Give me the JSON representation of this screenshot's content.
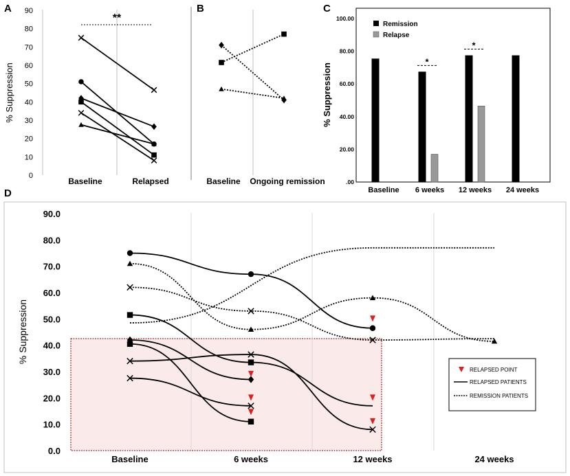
{
  "chart_data": [
    {
      "panel": "A",
      "type": "line",
      "ylabel": "% Suppression",
      "ylim": [
        0,
        90
      ],
      "yticks": [
        "0",
        "10",
        "20",
        "30",
        "40",
        "50",
        "60",
        "70",
        "80",
        "90"
      ],
      "categories": [
        "Baseline",
        "Relapsed"
      ],
      "significance": "**",
      "series": [
        {
          "marker": "x",
          "values": [
            75,
            46.5
          ]
        },
        {
          "marker": "circle",
          "values": [
            51,
            17
          ]
        },
        {
          "marker": "diamond",
          "values": [
            42,
            26.5
          ]
        },
        {
          "marker": "square",
          "values": [
            40,
            11
          ]
        },
        {
          "marker": "x",
          "values": [
            34,
            8
          ]
        },
        {
          "marker": "triangle",
          "values": [
            27.5,
            17
          ]
        }
      ]
    },
    {
      "panel": "B",
      "type": "line",
      "categories": [
        "Baseline",
        "Ongoing remission"
      ],
      "ylim": [
        0,
        90
      ],
      "series": [
        {
          "marker": "square",
          "style": "dotted",
          "values": [
            61.5,
            77
          ]
        },
        {
          "marker": "diamond",
          "style": "dotted",
          "values": [
            71,
            41
          ]
        },
        {
          "marker": "triangle",
          "style": "dotted",
          "values": [
            47,
            42
          ]
        }
      ]
    },
    {
      "panel": "C",
      "type": "bar",
      "ylabel": "% Suppression",
      "ylim": [
        0,
        100
      ],
      "yticks": [
        ".00",
        "20.00",
        "40.00",
        "60.00",
        "80.00",
        "100.00"
      ],
      "categories": [
        "Baseline",
        "6 weeks",
        "12 weeks",
        "24 weeks"
      ],
      "series": [
        {
          "name": "Remission",
          "color": "#000000",
          "values": [
            75.5,
            67.5,
            77.5,
            77.5
          ]
        },
        {
          "name": "Relapse",
          "color": "#999999",
          "values": [
            0,
            17,
            46.5,
            0
          ]
        }
      ],
      "significance": [
        "*",
        "*"
      ]
    },
    {
      "panel": "D",
      "type": "line",
      "ylabel": "% Suppression",
      "ylim": [
        0,
        90
      ],
      "yticks": [
        "0.0",
        "10.0",
        "20.0",
        "30.0",
        "40.0",
        "50.0",
        "60.0",
        "70.0",
        "80.0",
        "90.0"
      ],
      "categories": [
        "Baseline",
        "6 weeks",
        "12 weeks",
        "24 weeks"
      ],
      "shaded_region": {
        "ymax": 42,
        "x_from": "Baseline",
        "x_to": "12 weeks"
      },
      "legend": {
        "relapsed_point": "RELAPSED POINT",
        "relapsed_patients": "RELAPSED PATIENTS",
        "remission_patients": "REMISSION PATIENTS"
      },
      "series": [
        {
          "style": "solid",
          "marker": "circle",
          "x": [
            0,
            1,
            2
          ],
          "values": [
            75,
            67,
            46.5
          ]
        },
        {
          "style": "solid",
          "marker": "square",
          "x": [
            0,
            1
          ],
          "values": [
            51.5,
            33.5
          ]
        },
        {
          "style": "solid",
          "marker": "diamond",
          "x": [
            0,
            1
          ],
          "values": [
            42,
            27
          ]
        },
        {
          "style": "solid",
          "marker": "square",
          "x": [
            0,
            1
          ],
          "values": [
            40.5,
            11
          ]
        },
        {
          "style": "solid",
          "marker": "x",
          "x": [
            0,
            1,
            2
          ],
          "values": [
            34,
            36.5,
            8
          ]
        },
        {
          "style": "solid",
          "marker": "x",
          "x": [
            0,
            1
          ],
          "values": [
            27.5,
            17
          ]
        },
        {
          "style": "solid",
          "marker": "none",
          "x": [
            1,
            2
          ],
          "values": [
            33.5,
            17
          ]
        },
        {
          "style": "dotted",
          "marker": "triangle",
          "x": [
            0,
            1,
            2,
            3
          ],
          "values": [
            71,
            46,
            58,
            41.5
          ]
        },
        {
          "style": "dotted",
          "marker": "x",
          "x": [
            0,
            1,
            2
          ],
          "values": [
            62,
            53,
            42
          ]
        },
        {
          "style": "dotted",
          "marker": "none",
          "x": [
            0,
            2,
            3
          ],
          "values": [
            48.5,
            77,
            77
          ]
        },
        {
          "style": "dotted",
          "marker": "none",
          "x": [
            2,
            3
          ],
          "values": [
            42,
            42.5
          ]
        }
      ],
      "relapsed_points": [
        {
          "x": 1,
          "y": 29
        },
        {
          "x": 1,
          "y": 20
        },
        {
          "x": 1,
          "y": 14.5
        },
        {
          "x": 2,
          "y": 50
        },
        {
          "x": 2,
          "y": 20
        },
        {
          "x": 2,
          "y": 11
        }
      ]
    }
  ],
  "labels": {
    "A": "A",
    "B": "B",
    "C": "C",
    "D": "D"
  },
  "colors": {
    "relapse_marker": "#dd1f1f",
    "shade": "#fbeaea",
    "grid": "#bfbfbf"
  }
}
